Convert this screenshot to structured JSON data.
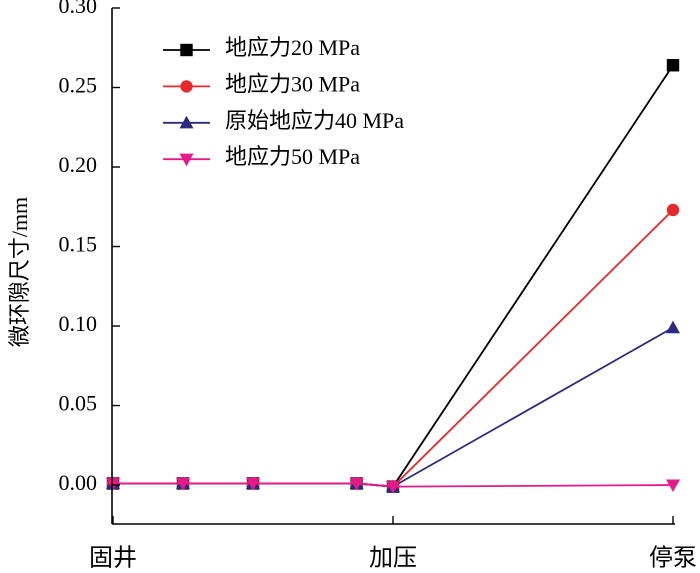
{
  "chart_data": {
    "type": "line",
    "title": "",
    "xlabel": "",
    "ylabel": "微环隙尺寸/mm",
    "x": [
      0,
      0.25,
      0.5,
      0.87,
      1,
      2
    ],
    "xlim": [
      0,
      2
    ],
    "xticks": [
      {
        "value": 0,
        "label": "固井"
      },
      {
        "value": 1,
        "label": "加压"
      },
      {
        "value": 2,
        "label": "停泵"
      }
    ],
    "ylim": [
      -0.0245,
      0.3
    ],
    "yticks": [
      0,
      0.05,
      0.1,
      0.15,
      0.2,
      0.25,
      0.3
    ],
    "ytick_labels": [
      "0.00",
      "0.05",
      "0.10",
      "0.15",
      "0.20",
      "0.25",
      "0.30"
    ],
    "grid": false,
    "legend_position": "top-left",
    "series": [
      {
        "name": "地应力20 MPa",
        "color": "#000000",
        "marker": "square",
        "values": [
          0.001,
          0.001,
          0.001,
          0.001,
          -0.001,
          0.264
        ]
      },
      {
        "name": "地应力30 MPa",
        "color": "#e8292b",
        "marker": "circle",
        "values": [
          0.001,
          0.001,
          0.001,
          0.001,
          -0.001,
          0.173
        ]
      },
      {
        "name": "原始地应力40 MPa",
        "color": "#2d2a80",
        "marker": "triangle-up",
        "values": [
          0.001,
          0.001,
          0.001,
          0.001,
          -0.001,
          0.099
        ]
      },
      {
        "name": "地应力50 MPa",
        "color": "#e6198b",
        "marker": "triangle-down",
        "values": [
          0.001,
          0.001,
          0.001,
          0.001,
          -0.001,
          0.0
        ]
      }
    ]
  }
}
